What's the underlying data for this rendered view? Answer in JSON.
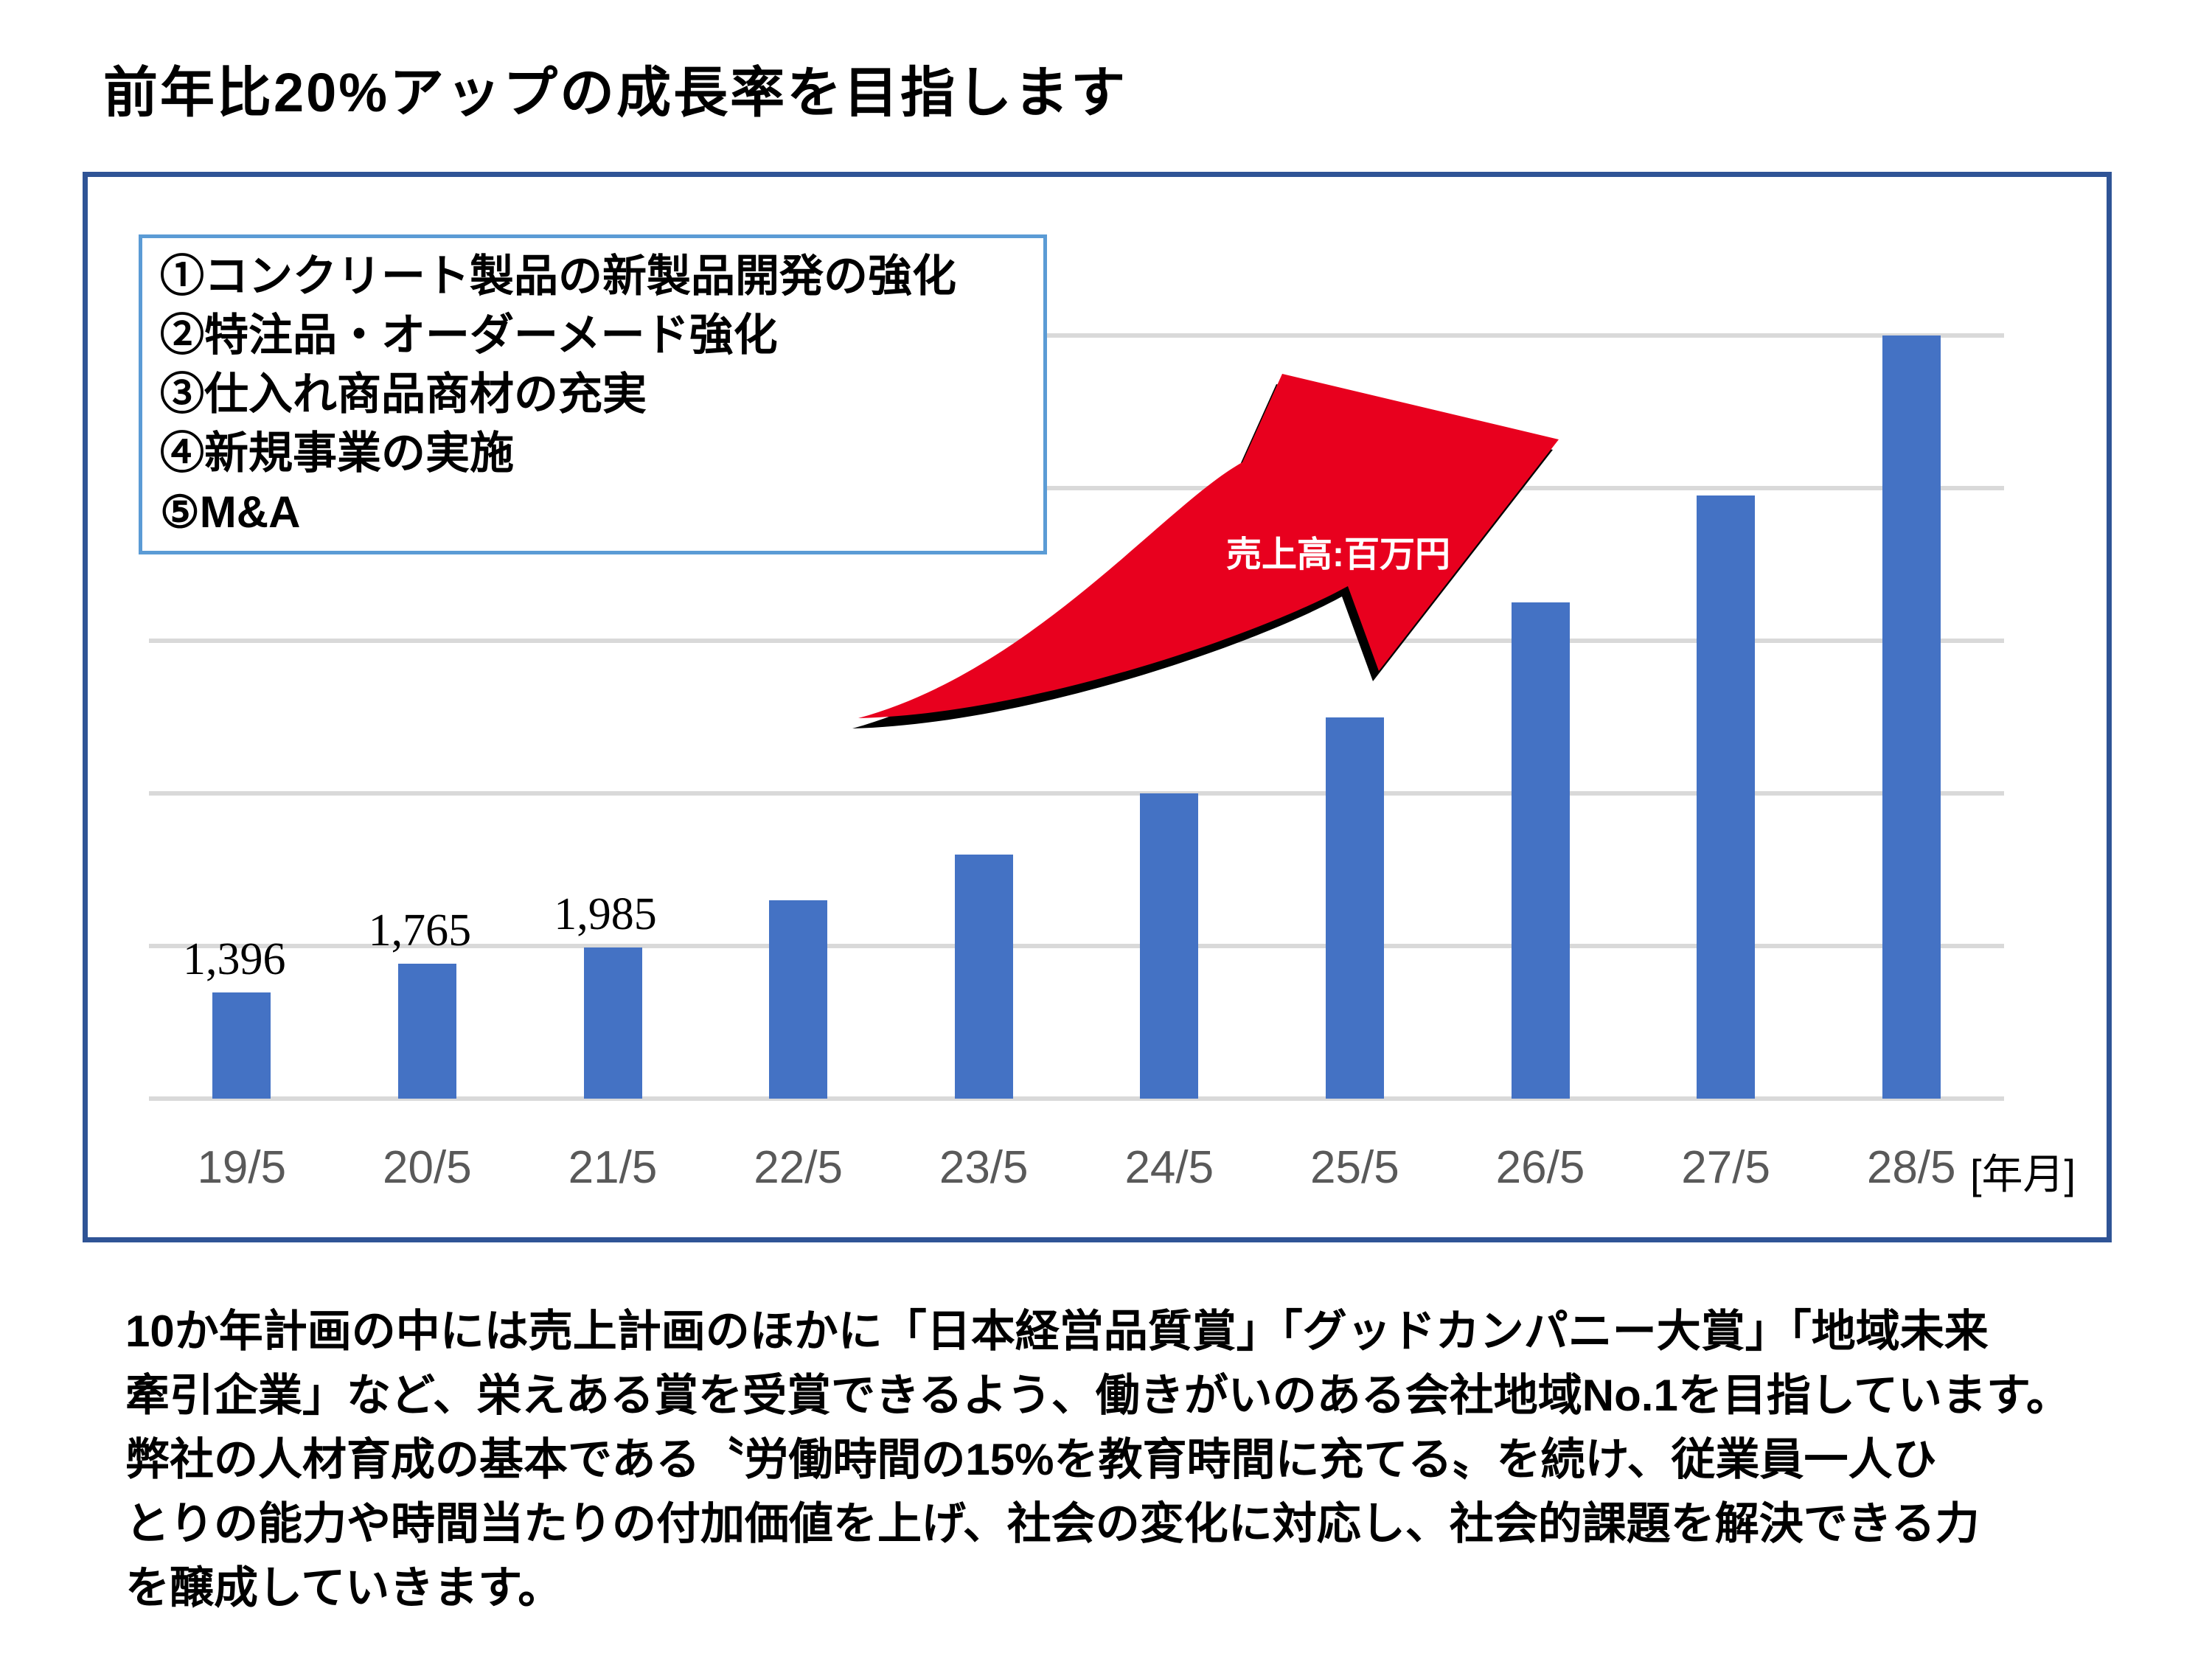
{
  "title": "前年比20%アップの成長率を目指します",
  "strategy_box": {
    "items": [
      "①コンクリート製品の新製品開発の強化",
      "②特注品・オーダーメード強化",
      "③仕入れ商品商材の充実",
      "④新規事業の実施",
      "⑤M&A"
    ]
  },
  "arrow_label": "売上高:百万円",
  "axis_unit_label": "[年月]",
  "chart_data": {
    "type": "bar",
    "categories": [
      "19/5",
      "20/5",
      "21/5",
      "22/5",
      "23/5",
      "24/5",
      "25/5",
      "26/5",
      "27/5",
      "28/5"
    ],
    "values": [
      1396,
      1765,
      1985,
      2600,
      3200,
      4000,
      5000,
      6500,
      7900,
      10000
    ],
    "data_labels": [
      "1,396",
      "1,765",
      "1,985",
      null,
      null,
      null,
      null,
      null,
      null,
      null
    ],
    "ylim": [
      0,
      10000
    ],
    "gridline_step": 2000,
    "grid_on": true,
    "title": "",
    "xlabel": "[年月]",
    "ylabel": "売上高:百万円"
  },
  "colors": {
    "bar": "#4472C4",
    "gridline": "#D9D9D9",
    "chart_border": "#2F5496",
    "strategy_border": "#5B9BD5",
    "arrow_red": "#E8001E",
    "arrow_shadow": "#000000",
    "xlabel_gray": "#595959"
  },
  "paragraph_lines": [
    "10か年計画の中には売上計画のほかに「日本経営品質賞」「グッドカンパニー大賞」「地域未来",
    "牽引企業」など、栄えある賞を受賞できるよう、働きがいのある会社地域No.1を目指しています。",
    "弊社の人材育成の基本である〝労働時間の15%を教育時間に充てる〟を続け、従業員一人ひ",
    "とりの能力や時間当たりの付加価値を上げ、社会の変化に対応し、社会的課題を解決できる力",
    "を醸成していきます。"
  ]
}
